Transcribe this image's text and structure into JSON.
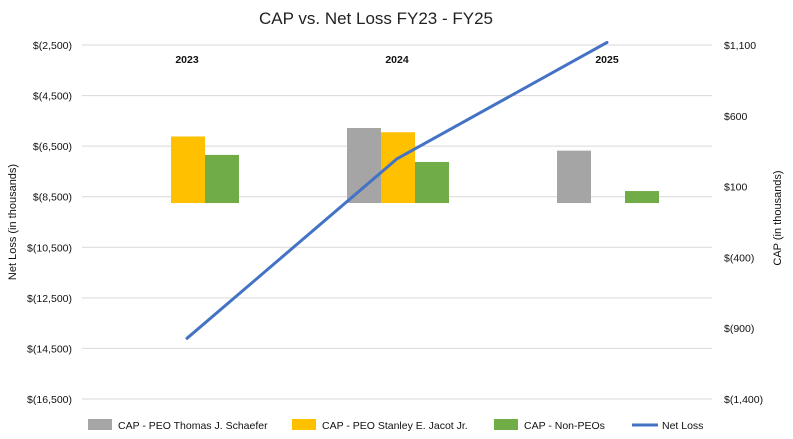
{
  "chart_data": {
    "type": "bar",
    "title": "CAP vs. Net Loss FY23 - FY25",
    "categories": [
      "2023",
      "2024",
      "2025"
    ],
    "left_axis": {
      "label": "Net Loss (in thousands)",
      "min": -16500,
      "max": -2500,
      "ticks": [
        -2500,
        -4500,
        -6500,
        -8500,
        -10500,
        -12500,
        -14500,
        -16500
      ],
      "tick_labels": [
        "$(2,500)",
        "$(4,500)",
        "$(6,500)",
        "$(8,500)",
        "$(10,500)",
        "$(12,500)",
        "$(14,500)",
        "$(16,500)"
      ]
    },
    "right_axis": {
      "label": "CAP (in thousands)",
      "min": -1400,
      "max": 1100,
      "ticks": [
        1100,
        600,
        100,
        -400,
        -900,
        -1400
      ],
      "tick_labels": [
        "$1,100",
        "$600",
        "$100",
        "$(400)",
        "$(900)",
        "$(1,400)"
      ]
    },
    "bar_baseline": -8750,
    "series": [
      {
        "name": "CAP - PEO Thomas J. Schaefer",
        "type": "bar",
        "axis": "right",
        "color": "#a5a5a5",
        "values": [
          null,
          530,
          370
        ]
      },
      {
        "name": "CAP - PEO Stanley E. Jacot Jr.",
        "type": "bar",
        "axis": "right",
        "color": "#ffc000",
        "values": [
          470,
          500,
          null
        ]
      },
      {
        "name": "CAP - Non-PEOs",
        "type": "bar",
        "axis": "right",
        "color": "#70ad47",
        "values": [
          340,
          290,
          0
        ]
      },
      {
        "name": "Net Loss",
        "type": "line",
        "axis": "left",
        "color": "#4472c4",
        "values": [
          -14100,
          -7000,
          -2400
        ]
      }
    ],
    "grid": true,
    "legend_position": "bottom"
  }
}
